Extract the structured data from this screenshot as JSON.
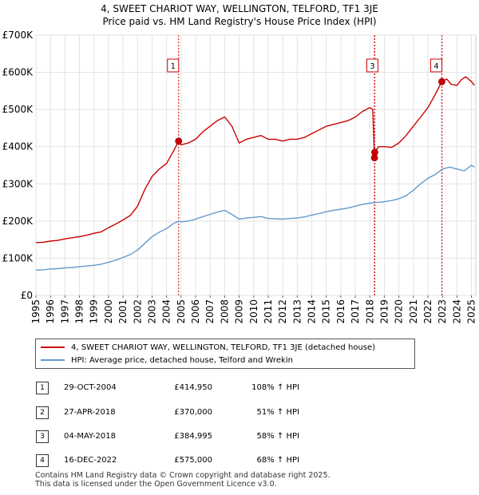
{
  "title": {
    "line1": "4, SWEET CHARIOT WAY, WELLINGTON, TELFORD, TF1 3JE",
    "line2": "Price paid vs. HM Land Registry's House Price Index (HPI)"
  },
  "colors": {
    "property": "#cc0000",
    "hpi": "#6699cc",
    "marker_line": "#cc0000"
  },
  "legend": {
    "property": "4, SWEET CHARIOT WAY, WELLINGTON, TELFORD, TF1 3JE (detached house)",
    "hpi": "HPI: Average price, detached house, Telford and Wrekin"
  },
  "sales": [
    {
      "num": "1",
      "date": "29-OCT-2004",
      "price": "£414,950",
      "hpi": "108% ↑ HPI"
    },
    {
      "num": "2",
      "date": "27-APR-2018",
      "price": "£370,000",
      "hpi": "51% ↑ HPI"
    },
    {
      "num": "3",
      "date": "04-MAY-2018",
      "price": "£384,995",
      "hpi": "58% ↑ HPI"
    },
    {
      "num": "4",
      "date": "16-DEC-2022",
      "price": "£575,000",
      "hpi": "68% ↑ HPI"
    }
  ],
  "footer": {
    "line1": "Contains HM Land Registry data © Crown copyright and database right 2025.",
    "line2": "This data is licensed under the Open Government Licence v3.0."
  },
  "chart_data": {
    "type": "line",
    "ylim": [
      0,
      700000
    ],
    "xlim": [
      1995,
      2025.3
    ],
    "yticks": [
      {
        "v": 0,
        "label": "£0"
      },
      {
        "v": 100000,
        "label": "£100K"
      },
      {
        "v": 200000,
        "label": "£200K"
      },
      {
        "v": 300000,
        "label": "£300K"
      },
      {
        "v": 400000,
        "label": "£400K"
      },
      {
        "v": 500000,
        "label": "£500K"
      },
      {
        "v": 600000,
        "label": "£600K"
      },
      {
        "v": 700000,
        "label": "£700K"
      }
    ],
    "xticks": [
      "1995",
      "1996",
      "1997",
      "1998",
      "1999",
      "2000",
      "2001",
      "2002",
      "2003",
      "2004",
      "2005",
      "2006",
      "2007",
      "2008",
      "2009",
      "2010",
      "2011",
      "2012",
      "2013",
      "2014",
      "2015",
      "2016",
      "2017",
      "2018",
      "2019",
      "2020",
      "2021",
      "2022",
      "2023",
      "2024",
      "2025"
    ],
    "sale_points": [
      {
        "label": "1",
        "x": 2004.83,
        "y": 414950
      },
      {
        "label": "2",
        "x": 2018.32,
        "y": 370000
      },
      {
        "label": "3",
        "x": 2018.34,
        "y": 384995
      },
      {
        "label": "4",
        "x": 2022.96,
        "y": 575000
      }
    ],
    "series": [
      {
        "name": "4, SWEET CHARIOT WAY, WELLINGTON, TELFORD, TF1 3JE (detached house)",
        "x": [
          1995,
          1995.5,
          1996,
          1996.5,
          1997,
          1997.5,
          1998,
          1998.5,
          1999,
          1999.5,
          2000,
          2000.5,
          2001,
          2001.5,
          2002,
          2002.5,
          2003,
          2003.5,
          2004,
          2004.5,
          2004.83,
          2005,
          2005.5,
          2006,
          2006.5,
          2007,
          2007.5,
          2008,
          2008.5,
          2009,
          2009.5,
          2010,
          2010.5,
          2011,
          2011.5,
          2012,
          2012.5,
          2013,
          2013.5,
          2014,
          2014.5,
          2015,
          2015.5,
          2016,
          2016.5,
          2017,
          2017.5,
          2018,
          2018.2,
          2018.32,
          2018.34,
          2018.6,
          2019,
          2019.5,
          2020,
          2020.5,
          2021,
          2021.5,
          2022,
          2022.5,
          2022.96,
          2023.3,
          2023.6,
          2024,
          2024.3,
          2024.6,
          2025,
          2025.2
        ],
        "values": [
          142000,
          143000,
          146000,
          148000,
          152000,
          155000,
          158000,
          162000,
          167000,
          171000,
          182000,
          192000,
          203000,
          215000,
          240000,
          285000,
          320000,
          340000,
          355000,
          390000,
          414950,
          405000,
          410000,
          420000,
          440000,
          455000,
          470000,
          480000,
          455000,
          410000,
          420000,
          425000,
          430000,
          420000,
          420000,
          415000,
          420000,
          420000,
          425000,
          435000,
          445000,
          455000,
          460000,
          465000,
          470000,
          480000,
          495000,
          505000,
          500000,
          370000,
          384995,
          400000,
          400000,
          398000,
          410000,
          430000,
          455000,
          480000,
          505000,
          540000,
          575000,
          582000,
          568000,
          565000,
          580000,
          588000,
          575000,
          565000
        ]
      },
      {
        "name": "HPI: Average price, detached house, Telford and Wrekin",
        "x": [
          1995,
          1995.5,
          1996,
          1996.5,
          1997,
          1997.5,
          1998,
          1998.5,
          1999,
          1999.5,
          2000,
          2000.5,
          2001,
          2001.5,
          2002,
          2002.5,
          2003,
          2003.5,
          2004,
          2004.5,
          2004.83,
          2005,
          2005.5,
          2006,
          2006.5,
          2007,
          2007.5,
          2008,
          2008.5,
          2009,
          2009.5,
          2010,
          2010.5,
          2011,
          2011.5,
          2012,
          2012.5,
          2013,
          2013.5,
          2014,
          2014.5,
          2015,
          2015.5,
          2016,
          2016.5,
          2017,
          2017.5,
          2018,
          2018.5,
          2019,
          2019.5,
          2020,
          2020.5,
          2021,
          2021.5,
          2022,
          2022.5,
          2023,
          2023.5,
          2024,
          2024.5,
          2025,
          2025.2
        ],
        "values": [
          68000,
          69000,
          71000,
          72000,
          74000,
          75000,
          77000,
          79000,
          81000,
          84000,
          89000,
          95000,
          102000,
          110000,
          122000,
          140000,
          158000,
          170000,
          180000,
          194000,
          199000,
          198000,
          200000,
          205000,
          212000,
          218000,
          224000,
          229000,
          218000,
          205000,
          208000,
          210000,
          212000,
          207000,
          206000,
          205000,
          207000,
          208000,
          211000,
          216000,
          220000,
          225000,
          229000,
          232000,
          235000,
          240000,
          245000,
          248000,
          250000,
          252000,
          255000,
          260000,
          268000,
          283000,
          300000,
          315000,
          325000,
          340000,
          345000,
          340000,
          335000,
          350000,
          345000
        ]
      }
    ]
  }
}
